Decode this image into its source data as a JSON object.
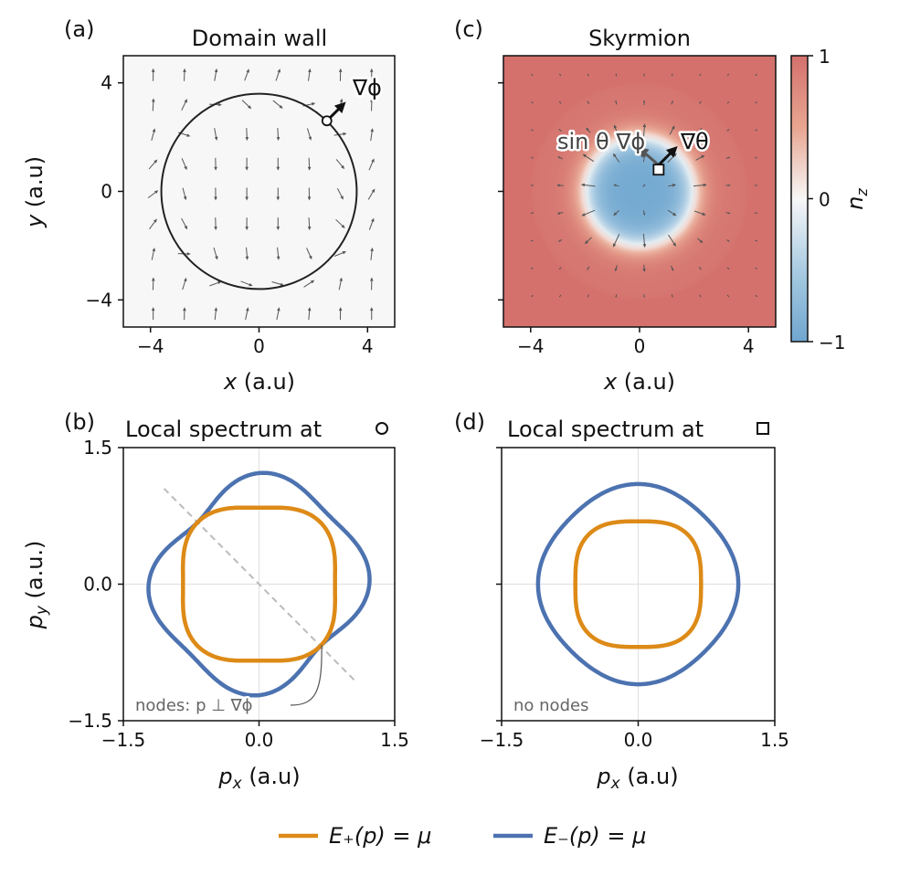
{
  "chart_data": [
    {
      "panel": "(a)",
      "type": "quiver",
      "title": "Domain wall",
      "xlabel": {
        "var": "x",
        "unit": " (a.u)"
      },
      "ylabel": {
        "var": "y",
        "unit": " (a.u)"
      },
      "xlim": [
        -5,
        5
      ],
      "ylim": [
        -5,
        5
      ],
      "xticks": [
        {
          "v": -4,
          "t": "−4"
        },
        {
          "v": 0,
          "t": "0"
        },
        {
          "v": 4,
          "t": "4"
        }
      ],
      "yticks": [
        {
          "v": -4,
          "t": "−4"
        },
        {
          "v": 0,
          "t": "0"
        },
        {
          "v": 4,
          "t": "4"
        }
      ],
      "wall_radius": 3.6,
      "marker": {
        "x": 2.5,
        "y": 2.6,
        "shape": "circle"
      },
      "annotation": "∇ϕ",
      "background": "#f7f7f7"
    },
    {
      "panel": "(c)",
      "type": "heatmap",
      "title": "Skyrmion",
      "xlabel": {
        "var": "x",
        "unit": " (a.u)"
      },
      "xlim": [
        -5,
        5
      ],
      "ylim": [
        -5,
        5
      ],
      "xticks": [
        {
          "v": -4,
          "t": "−4"
        },
        {
          "v": 0,
          "t": "0"
        },
        {
          "v": 4,
          "t": "4"
        }
      ],
      "yticks": [
        {
          "v": -4,
          "t": ""
        },
        {
          "v": 0,
          "t": ""
        },
        {
          "v": 4,
          "t": ""
        }
      ],
      "core_radius": 2,
      "marker": {
        "x": 0.7,
        "y": 0.8,
        "shape": "square"
      },
      "annotations": [
        "sin θ ∇ϕ",
        "∇θ"
      ],
      "colorbar": {
        "label": "n",
        "label_sub": "z",
        "range": [
          -1,
          1
        ],
        "ticks": [
          {
            "v": 1,
            "t": "1"
          },
          {
            "v": 0,
            "t": "0"
          },
          {
            "v": -1,
            "t": "−1"
          }
        ],
        "colors": [
          "#6fa6cf",
          "#a9cbe2",
          "#f7f7f7",
          "#e8a590",
          "#d4716d"
        ]
      }
    },
    {
      "panel": "(b)",
      "type": "line",
      "title": "Local spectrum at",
      "title_marker": "circle",
      "xlabel": {
        "var": "p",
        "sub": "x",
        "unit": " (a.u)"
      },
      "ylabel": {
        "var": "p",
        "sub": "y",
        "unit": " (a.u.)"
      },
      "xlim": [
        -1.5,
        1.5
      ],
      "ylim": [
        -1.5,
        1.5
      ],
      "xticks": [
        {
          "v": -1.5,
          "t": "−1.5"
        },
        {
          "v": 0,
          "t": "0.0"
        },
        {
          "v": 1.5,
          "t": "1.5"
        }
      ],
      "yticks": [
        {
          "v": -1.5,
          "t": "−1.5"
        },
        {
          "v": 0,
          "t": "0.0"
        },
        {
          "v": 1.5,
          "t": "1.5"
        }
      ],
      "grid": "zero-lines",
      "angles_deg": [
        0,
        22.5,
        45,
        67.5,
        90,
        112.5,
        135,
        157.5,
        180,
        202.5,
        225,
        247.5,
        270,
        292.5,
        315,
        337.5
      ],
      "series": [
        {
          "name": "E₊(p) = μ",
          "radius": [
            0.84,
            0.9,
            0.96,
            0.9,
            0.84,
            0.9,
            0.96,
            0.9,
            0.84,
            0.9,
            0.96,
            0.9,
            0.84,
            0.9,
            0.96,
            0.9
          ]
        },
        {
          "name": "E₋(p) = μ",
          "radius": [
            1.22,
            1.162,
            1.08,
            1.162,
            1.22,
            1.078,
            0.96,
            1.078,
            1.22,
            1.162,
            1.08,
            1.162,
            1.22,
            1.078,
            0.96,
            1.078
          ]
        }
      ],
      "node_line": {
        "from": [
          -1.05,
          1.05
        ],
        "to": [
          1.05,
          -1.05
        ]
      },
      "annotation": "nodes: p ⊥ ∇ϕ"
    },
    {
      "panel": "(d)",
      "type": "line",
      "title": "Local spectrum at",
      "title_marker": "square",
      "xlabel": {
        "var": "p",
        "sub": "x",
        "unit": " (a.u)"
      },
      "xlim": [
        -1.5,
        1.5
      ],
      "ylim": [
        -1.5,
        1.5
      ],
      "xticks": [
        {
          "v": -1.5,
          "t": "−1.5"
        },
        {
          "v": 0,
          "t": "0.0"
        },
        {
          "v": 1.5,
          "t": "1.5"
        }
      ],
      "yticks": [
        {
          "v": -1.5,
          "t": ""
        },
        {
          "v": 0,
          "t": ""
        },
        {
          "v": 1.5,
          "t": ""
        }
      ],
      "grid": "zero-lines",
      "angles_deg": [
        0,
        22.5,
        45,
        67.5,
        90,
        112.5,
        135,
        157.5,
        180,
        202.5,
        225,
        247.5,
        270,
        292.5,
        315,
        337.5
      ],
      "series": [
        {
          "name": "E₊(p) = μ",
          "radius": [
            0.69,
            0.73,
            0.77,
            0.73,
            0.69,
            0.73,
            0.77,
            0.73,
            0.69,
            0.73,
            0.77,
            0.73,
            0.69,
            0.73,
            0.77,
            0.73
          ]
        },
        {
          "name": "E₋(p) = μ",
          "radius": [
            1.1,
            1.07,
            1.04,
            1.07,
            1.1,
            1.07,
            1.04,
            1.07,
            1.1,
            1.07,
            1.04,
            1.07,
            1.1,
            1.07,
            1.04,
            1.07
          ]
        }
      ],
      "annotation": "no nodes"
    }
  ],
  "legend": {
    "placement": "bottom",
    "items": [
      {
        "label": "E₊(p) = μ",
        "color": "#dd8a17"
      },
      {
        "label": "E₋(p) = μ",
        "color": "#4c72b0"
      }
    ]
  },
  "colors": {
    "E_plus": "#dd8a17",
    "E_minus": "#4c72b0",
    "quiver": "#555555"
  }
}
